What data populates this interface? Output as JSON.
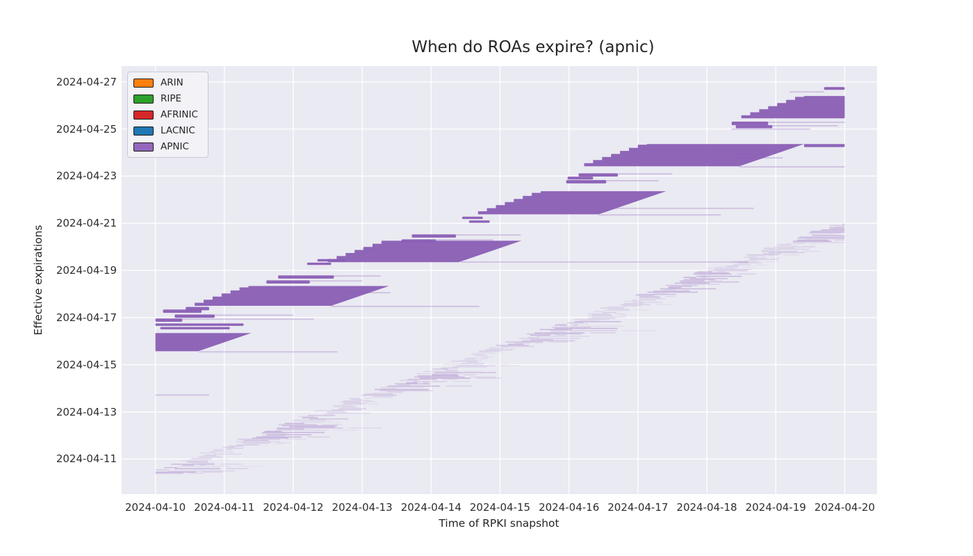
{
  "title": "When do ROAs expire? (apnic)",
  "axes": {
    "xlabel": "Time of RPKI snapshot",
    "ylabel": "Effective expirations"
  },
  "legend": {
    "items": [
      {
        "label": "ARIN",
        "color": "#ff7f0e"
      },
      {
        "label": "RIPE",
        "color": "#2ca02c"
      },
      {
        "label": "AFRINIC",
        "color": "#d62728"
      },
      {
        "label": "LACNIC",
        "color": "#1f77b4"
      },
      {
        "label": "APNIC",
        "color": "#9467bd"
      }
    ]
  },
  "chart_data": {
    "type": "area",
    "title": "When do ROAs expire? (apnic)",
    "xlabel": "Time of RPKI snapshot",
    "ylabel": "Effective expirations",
    "grid": true,
    "legend_position": "upper left",
    "x_domain_days_april2024": [
      9.51,
      20.47
    ],
    "y_domain_days_april2024": [
      9.51,
      27.67
    ],
    "x_ticks": [
      {
        "label": "2024-04-10",
        "day": 10
      },
      {
        "label": "2024-04-11",
        "day": 11
      },
      {
        "label": "2024-04-12",
        "day": 12
      },
      {
        "label": "2024-04-13",
        "day": 13
      },
      {
        "label": "2024-04-14",
        "day": 14
      },
      {
        "label": "2024-04-15",
        "day": 15
      },
      {
        "label": "2024-04-16",
        "day": 16
      },
      {
        "label": "2024-04-17",
        "day": 17
      },
      {
        "label": "2024-04-18",
        "day": 18
      },
      {
        "label": "2024-04-19",
        "day": 19
      },
      {
        "label": "2024-04-20",
        "day": 20
      }
    ],
    "y_ticks": [
      {
        "label": "2024-04-11",
        "day": 11
      },
      {
        "label": "2024-04-13",
        "day": 13
      },
      {
        "label": "2024-04-15",
        "day": 15
      },
      {
        "label": "2024-04-17",
        "day": 17
      },
      {
        "label": "2024-04-19",
        "day": 19
      },
      {
        "label": "2024-04-21",
        "day": 21
      },
      {
        "label": "2024-04-23",
        "day": 23
      },
      {
        "label": "2024-04-25",
        "day": 25
      },
      {
        "label": "2024-04-27",
        "day": 27
      }
    ],
    "style": {
      "plot_bg": "#eaeaf2",
      "grid_color": "#ffffff",
      "band_fill": "#8a5fb5",
      "faint_fill": "rgba(148,103,189,0.33)",
      "series_color": "#9467bd"
    },
    "data_start_day": 10.0,
    "data_end_day": 20.0,
    "right_edge_offset_days": 4.95,
    "bands": [
      {
        "xl": 10.0,
        "ybot": 15.57,
        "ytop": 16.34,
        "left": "vertical"
      },
      {
        "xl": 10.57,
        "ybot": 17.5,
        "ytop": 18.34,
        "left": "stair"
      },
      {
        "xl": 12.5,
        "ybot": 19.35,
        "ytop": 20.26,
        "left": "stair"
      },
      {
        "xl": 14.68,
        "ybot": 21.38,
        "ytop": 22.36,
        "left": "stair"
      },
      {
        "xl": 16.22,
        "ybot": 23.42,
        "ytop": 24.36,
        "left": "stair"
      },
      {
        "xl": 18.5,
        "ybot": 25.45,
        "ytop": 26.4,
        "left": "stair",
        "clip_right": 20.0
      }
    ],
    "top_bars": [
      {
        "x1": 19.41,
        "x2": 20.0,
        "y": 24.36,
        "h": 0.13
      },
      {
        "x1": 19.7,
        "x2": 20.0,
        "y": 26.78,
        "h": 0.12
      },
      {
        "x1": 18.36,
        "x2": 18.89,
        "y": 25.31,
        "h": 0.15
      },
      {
        "x1": 18.42,
        "x2": 18.95,
        "y": 25.16,
        "h": 0.13
      }
    ],
    "dark_bars": [
      {
        "x1": 10.11,
        "x2": 10.67,
        "y": 17.34
      },
      {
        "x1": 10.28,
        "x2": 10.86,
        "y": 17.13
      },
      {
        "x1": 10.44,
        "x2": 10.78,
        "y": 17.45
      },
      {
        "x1": 10.0,
        "x2": 10.39,
        "y": 16.96
      },
      {
        "x1": 10.0,
        "x2": 11.28,
        "y": 16.75,
        "h": 0.1
      },
      {
        "x1": 10.07,
        "x2": 11.08,
        "y": 16.6,
        "h": 0.1
      },
      {
        "x1": 11.78,
        "x2": 12.59,
        "y": 18.79
      },
      {
        "x1": 11.61,
        "x2": 12.24,
        "y": 18.58
      },
      {
        "x1": 13.72,
        "x2": 14.36,
        "y": 20.53
      },
      {
        "x1": 13.57,
        "x2": 14.07,
        "y": 20.32
      },
      {
        "x1": 12.35,
        "x2": 12.75,
        "y": 19.48,
        "h": 0.1
      },
      {
        "x1": 12.2,
        "x2": 12.55,
        "y": 19.33,
        "h": 0.1
      },
      {
        "x1": 16.14,
        "x2": 16.71,
        "y": 23.12
      },
      {
        "x1": 15.96,
        "x2": 16.54,
        "y": 22.83
      },
      {
        "x1": 15.98,
        "x2": 16.35,
        "y": 22.98,
        "h": 0.12
      },
      {
        "x1": 14.55,
        "x2": 14.85,
        "y": 21.12,
        "h": 0.1
      },
      {
        "x1": 14.45,
        "x2": 14.75,
        "y": 21.28,
        "h": 0.1
      }
    ],
    "faint_lines": [
      {
        "x1": 10.63,
        "x2": 12.64,
        "y": 15.57
      },
      {
        "x1": 10.0,
        "x2": 10.78,
        "y": 13.74
      },
      {
        "x1": 12.55,
        "x2": 14.7,
        "y": 17.5
      },
      {
        "x1": 12.73,
        "x2": 13.41,
        "y": 18.08
      },
      {
        "x1": 14.43,
        "x2": 18.6,
        "y": 19.38
      },
      {
        "x1": 13.0,
        "x2": 14.0,
        "y": 19.95
      },
      {
        "x1": 16.6,
        "x2": 18.68,
        "y": 21.66
      },
      {
        "x1": 16.43,
        "x2": 18.2,
        "y": 21.38
      },
      {
        "x1": 18.47,
        "x2": 20.0,
        "y": 23.42
      },
      {
        "x1": 12.59,
        "x2": 13.27,
        "y": 18.79
      },
      {
        "x1": 12.24,
        "x2": 13.0,
        "y": 18.58
      },
      {
        "x1": 14.36,
        "x2": 15.3,
        "y": 20.53
      },
      {
        "x1": 14.07,
        "x2": 14.9,
        "y": 20.32
      },
      {
        "x1": 16.71,
        "x2": 17.5,
        "y": 23.12
      },
      {
        "x1": 16.54,
        "x2": 17.3,
        "y": 22.83
      },
      {
        "x1": 10.39,
        "x2": 12.3,
        "y": 16.96
      },
      {
        "x1": 10.86,
        "x2": 12.0,
        "y": 17.13
      },
      {
        "x1": 18.89,
        "x2": 20.0,
        "y": 25.31
      },
      {
        "x1": 18.6,
        "x2": 19.9,
        "y": 25.16
      },
      {
        "x1": 18.36,
        "x2": 19.5,
        "y": 25.02
      },
      {
        "x1": 19.2,
        "x2": 19.7,
        "y": 26.6
      },
      {
        "x1": 18.4,
        "x2": 19.1,
        "y": 23.8
      },
      {
        "x1": 18.3,
        "x2": 18.9,
        "y": 23.95
      }
    ],
    "faint_staircase": {
      "y_start": 10.42,
      "y_end": 21.05,
      "row_step": 0.048,
      "offset_base": 0.45,
      "offset_growth": 0.65,
      "seed": 7
    }
  }
}
